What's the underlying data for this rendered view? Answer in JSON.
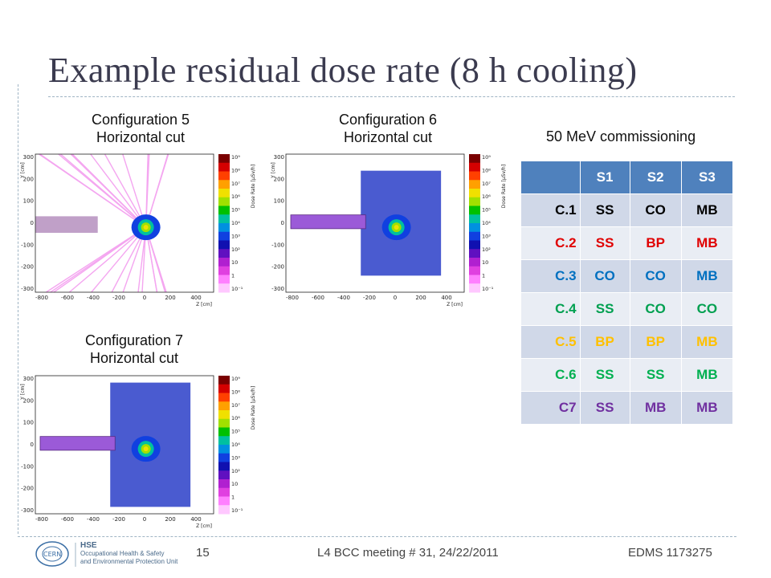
{
  "title": "Example residual dose rate (8 h cooling)",
  "plots": [
    {
      "name": "configuration-5",
      "caption_line1": "Configuration 5",
      "caption_line2": "Horizontal cut"
    },
    {
      "name": "configuration-6",
      "caption_line1": "Configuration 6",
      "caption_line2": "Horizontal cut"
    },
    {
      "name": "configuration-7",
      "caption_line1": "Configuration 7",
      "caption_line2": "Horizontal cut"
    }
  ],
  "plot_axes": {
    "y_label": "Y [cm]",
    "x_label": "Z [cm]",
    "colorbar_label": "Dose Rate [µSv/h]",
    "x_ticks": [
      "-800",
      "-600",
      "-400",
      "-200",
      "0",
      "200",
      "400"
    ],
    "y_ticks": [
      "300",
      "200",
      "100",
      "0",
      "-100",
      "-200",
      "-300"
    ],
    "colorbar_ticks": [
      "10⁹",
      "10⁸",
      "10⁷",
      "10⁶",
      "10⁵",
      "10⁴",
      "10³",
      "10²",
      "10",
      "1",
      "10⁻¹"
    ],
    "colorbar_colors": [
      "#7a0000",
      "#d40000",
      "#ff4000",
      "#ffa000",
      "#f0e000",
      "#a0e000",
      "#00c000",
      "#00c0a0",
      "#0090e0",
      "#1040e0",
      "#1010b0",
      "#6010c0",
      "#b020d0",
      "#e040e0",
      "#ff80ff",
      "#ffc8ff"
    ]
  },
  "commission_label": "50 MeV commissioning",
  "table": {
    "headers": [
      "",
      "S1",
      "S2",
      "S3"
    ],
    "rows": [
      {
        "label": "C.1",
        "color": "#000000",
        "s1": "SS",
        "s2": "CO",
        "s3": "MB"
      },
      {
        "label": "C.2",
        "color": "#e00000",
        "s1": "SS",
        "s2": "BP",
        "s3": "MB"
      },
      {
        "label": "C.3",
        "color": "#0070c0",
        "s1": "CO",
        "s2": "CO",
        "s3": "MB"
      },
      {
        "label": "C.4",
        "color": "#00a050",
        "s1": "SS",
        "s2": "CO",
        "s3": "CO"
      },
      {
        "label": "C.5",
        "color": "#ffc000",
        "s1": "BP",
        "s2": "BP",
        "s3": "MB"
      },
      {
        "label": "C.6",
        "color": "#00b050",
        "s1": "SS",
        "s2": "SS",
        "s3": "MB"
      },
      {
        "label": "C7",
        "color": "#7030a0",
        "s1": "SS",
        "s2": "MB",
        "s3": "MB"
      }
    ]
  },
  "footer": {
    "hse_title": "HSE",
    "hse_line1": "Occupational Health & Safety",
    "hse_line2": "and Environmental Protection Unit",
    "page_number": "15",
    "meeting": "L4 BCC meeting # 31, 24/22/2011",
    "edms": "EDMS 1173275"
  }
}
